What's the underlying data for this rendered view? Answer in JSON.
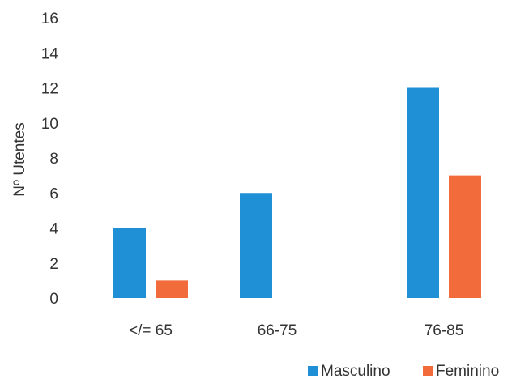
{
  "chart_data": {
    "type": "bar",
    "categories": [
      "</= 65",
      "66-75",
      "76-85"
    ],
    "series": [
      {
        "name": "Masculino",
        "values": [
          4,
          6,
          12
        ],
        "color": "#1f8fd6"
      },
      {
        "name": "Feminino",
        "values": [
          1,
          0,
          7
        ],
        "color": "#f26b3a"
      }
    ],
    "title": "",
    "xlabel": "",
    "ylabel": "Nº Utentes",
    "ylim": [
      0,
      16
    ],
    "yticks": [
      "0",
      "2",
      "4",
      "6",
      "8",
      "10",
      "12",
      "14",
      "16"
    ],
    "grid": false,
    "legend": "bottom-right"
  }
}
